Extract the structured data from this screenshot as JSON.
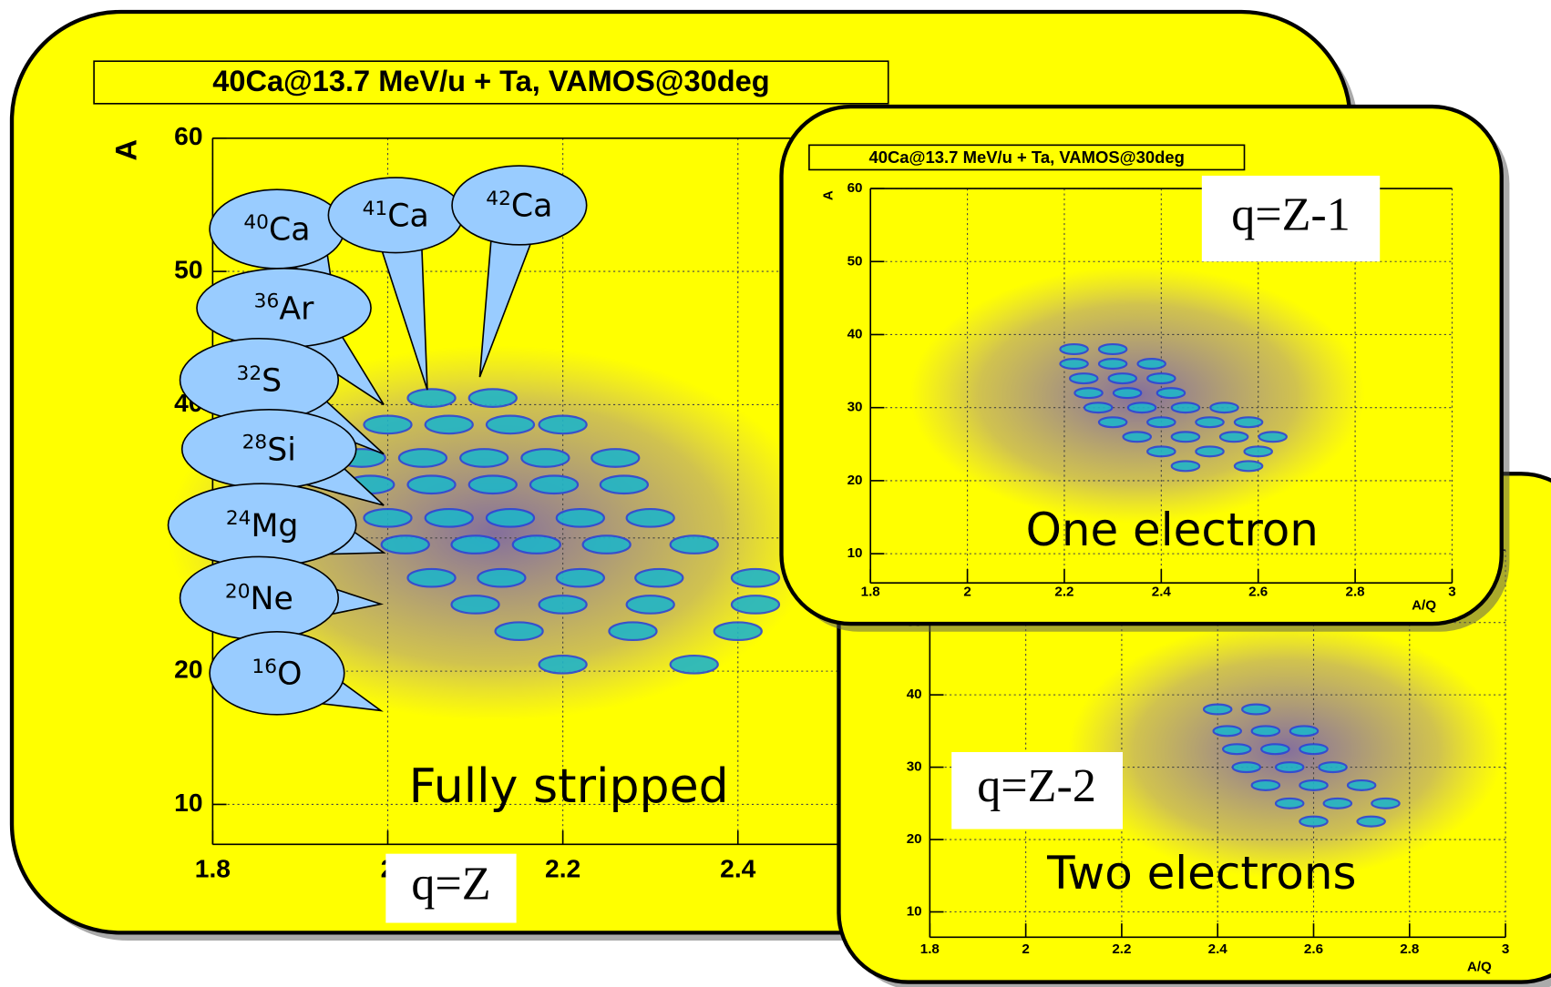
{
  "chart_data": [
    {
      "type": "scatter",
      "title": "40Ca@13.7 MeV/u + Ta, VAMOS@30deg",
      "ylabel": "A",
      "xlim": [
        1.8,
        3
      ],
      "ylim": [
        7,
        60
      ],
      "xticks": [
        1.8,
        2,
        2.2,
        2.4,
        2.6,
        2.8,
        3
      ],
      "yticks": [
        10,
        20,
        30,
        40,
        50,
        60
      ],
      "grid": true,
      "color": "#1fb5c8",
      "x": [
        2.05,
        2.12,
        2.0,
        2.07,
        2.14,
        2.2,
        1.97,
        2.04,
        2.11,
        2.18,
        2.26,
        1.98,
        2.05,
        2.12,
        2.19,
        2.27,
        2.0,
        2.07,
        2.14,
        2.22,
        2.3,
        2.02,
        2.1,
        2.17,
        2.25,
        2.35,
        2.05,
        2.13,
        2.22,
        2.31,
        2.42,
        2.1,
        2.2,
        2.3,
        2.42,
        2.15,
        2.28,
        2.4,
        2.2,
        2.35
      ],
      "values": [
        40.5,
        40.5,
        38.5,
        38.5,
        38.5,
        38.5,
        36,
        36,
        36,
        36,
        36,
        34,
        34,
        34,
        34,
        34,
        31.5,
        31.5,
        31.5,
        31.5,
        31.5,
        29.5,
        29.5,
        29.5,
        29.5,
        29.5,
        27,
        27,
        27,
        27,
        27,
        25,
        25,
        25,
        25,
        23,
        23,
        23,
        20.5,
        20.5
      ],
      "callouts": [
        {
          "mass": "40",
          "element": "Ca"
        },
        {
          "mass": "41",
          "element": "Ca"
        },
        {
          "mass": "42",
          "element": "Ca"
        },
        {
          "mass": "36",
          "element": "Ar"
        },
        {
          "mass": "32",
          "element": "S"
        },
        {
          "mass": "28",
          "element": "Si"
        },
        {
          "mass": "24",
          "element": "Mg"
        },
        {
          "mass": "20",
          "element": "Ne"
        },
        {
          "mass": "16",
          "element": "O"
        }
      ],
      "annotations": [
        "Fully stripped",
        "q=Z"
      ]
    },
    {
      "type": "scatter",
      "title": "40Ca@13.7 MeV/u + Ta, VAMOS@30deg",
      "ylabel": "A",
      "xlabel": "A/Q",
      "xlim": [
        1.8,
        3
      ],
      "ylim": [
        6,
        60
      ],
      "xticks": [
        1.8,
        2,
        2.2,
        2.4,
        2.6,
        2.8,
        3
      ],
      "yticks": [
        10,
        20,
        30,
        40,
        50,
        60
      ],
      "grid": true,
      "color": "#1fb5c8",
      "x": [
        2.22,
        2.3,
        2.22,
        2.3,
        2.38,
        2.24,
        2.32,
        2.4,
        2.25,
        2.33,
        2.42,
        2.27,
        2.36,
        2.45,
        2.53,
        2.3,
        2.4,
        2.5,
        2.58,
        2.35,
        2.45,
        2.55,
        2.63,
        2.4,
        2.5,
        2.6,
        2.45,
        2.58
      ],
      "values": [
        38,
        38,
        36,
        36,
        36,
        34,
        34,
        34,
        32,
        32,
        32,
        30,
        30,
        30,
        30,
        28,
        28,
        28,
        28,
        26,
        26,
        26,
        26,
        24,
        24,
        24,
        22,
        22
      ],
      "annotations": [
        "q=Z-1",
        "One electron"
      ]
    },
    {
      "type": "scatter",
      "xlabel": "A/Q",
      "xlim": [
        1.8,
        3
      ],
      "ylim": [
        6.5,
        60
      ],
      "xticks": [
        1.8,
        2,
        2.2,
        2.4,
        2.6,
        2.8,
        3
      ],
      "yticks": [
        10,
        20,
        30,
        40,
        50
      ],
      "grid": true,
      "color": "#1fb5c8",
      "x": [
        2.4,
        2.48,
        2.42,
        2.5,
        2.58,
        2.44,
        2.52,
        2.6,
        2.46,
        2.55,
        2.64,
        2.5,
        2.6,
        2.7,
        2.55,
        2.65,
        2.75,
        2.6,
        2.72
      ],
      "values": [
        38,
        38,
        35,
        35,
        35,
        32.5,
        32.5,
        32.5,
        30,
        30,
        30,
        27.5,
        27.5,
        27.5,
        25,
        25,
        25,
        22.5,
        22.5
      ],
      "annotations": [
        "q=Z-2",
        "Two electrons"
      ]
    }
  ]
}
